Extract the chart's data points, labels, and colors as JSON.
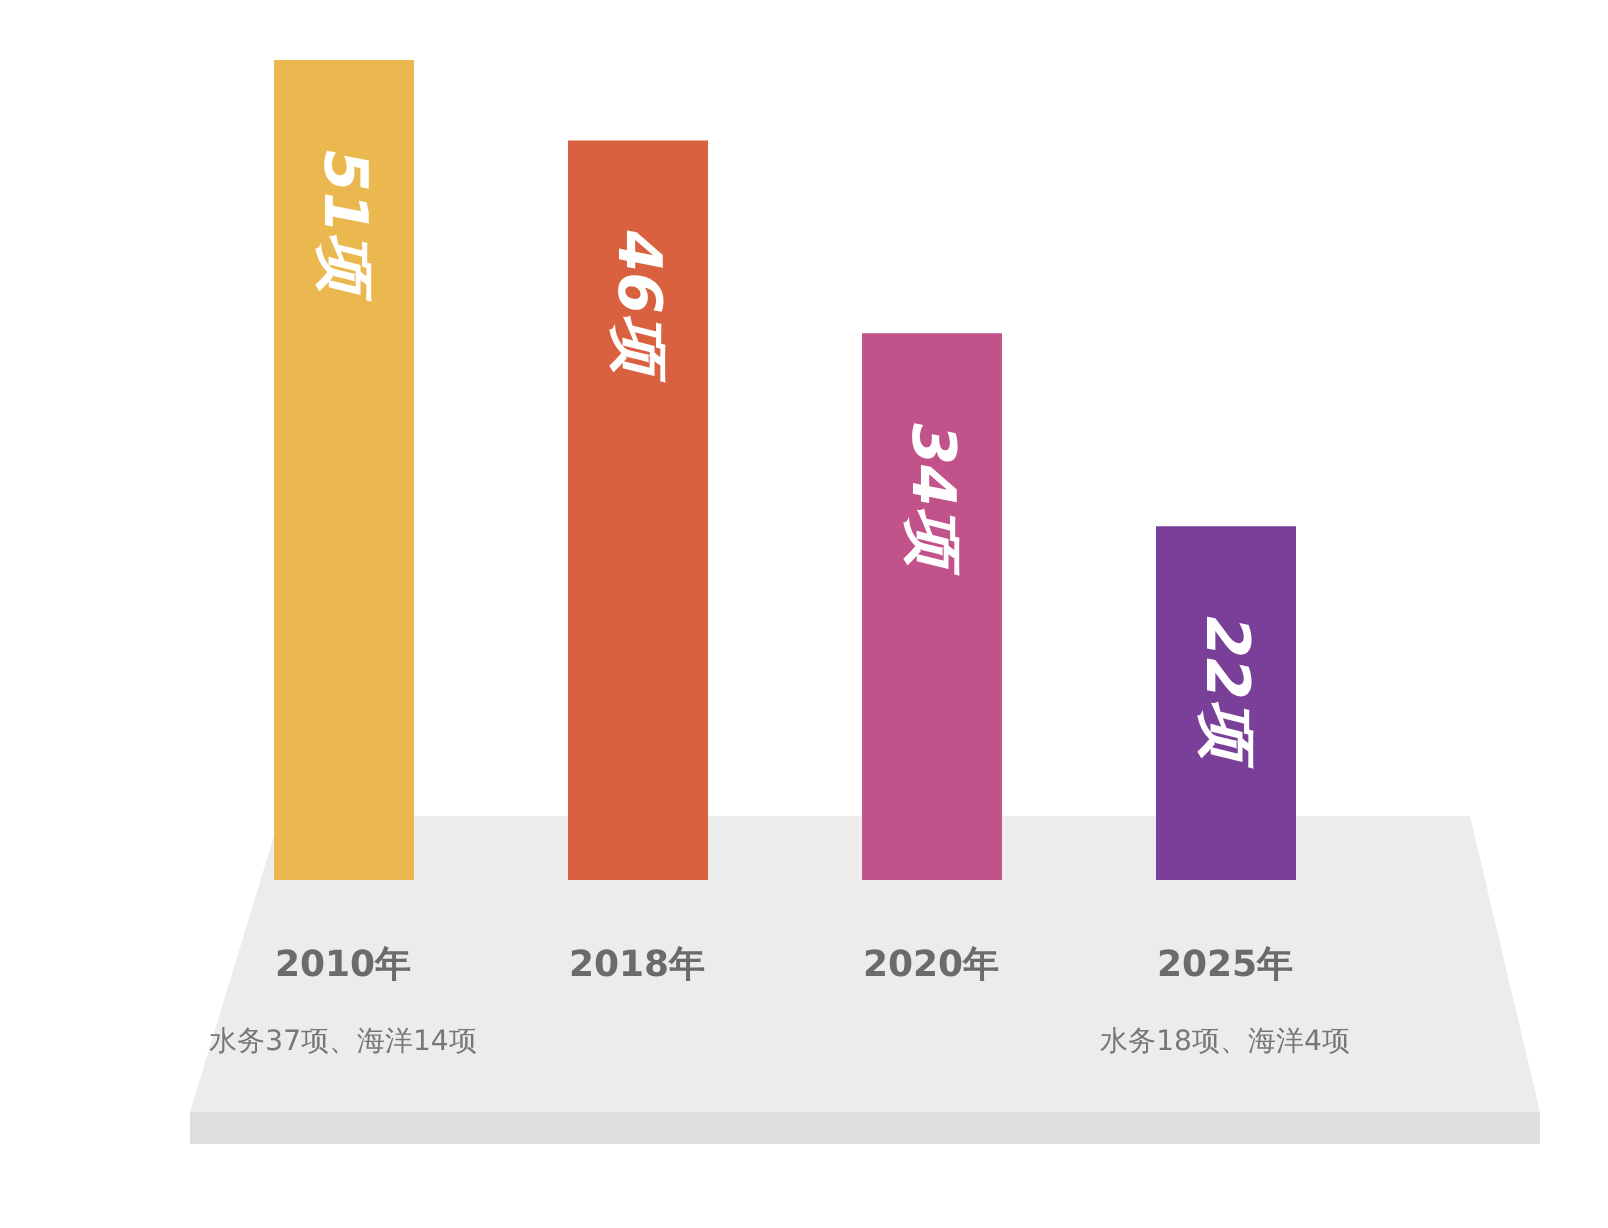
{
  "chart_data": {
    "type": "bar",
    "categories": [
      "2010年",
      "2018年",
      "2020年",
      "2025年"
    ],
    "values": [
      51,
      46,
      34,
      22
    ],
    "colors": [
      "#ebb84f",
      "#d9613f",
      "#c2528a",
      "#7a3f98"
    ],
    "value_labels": [
      "51项",
      "46项",
      "34项",
      "22项"
    ],
    "annotations": [
      "水务37项、海洋14项",
      "水务18项、海洋4项"
    ],
    "tick_labels": "x"
  }
}
